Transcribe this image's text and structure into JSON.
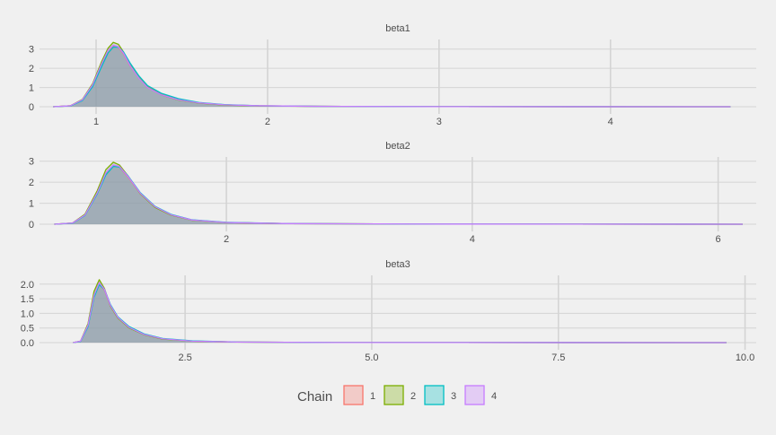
{
  "chart_data": {
    "type": "area",
    "chart_kind": "faceted density plot",
    "facet_layout": "3 rows, free x scales",
    "series_names": [
      "1",
      "2",
      "3",
      "4"
    ],
    "colors": {
      "1": "#f8766d",
      "2": "#7cae00",
      "3": "#00bfc4",
      "4": "#c77cff",
      "fill": "#8c9aa8"
    },
    "background": "#f0f0f0",
    "grid": true,
    "legend": {
      "title": "Chain",
      "position": "bottom",
      "labels": [
        "1",
        "2",
        "3",
        "4"
      ]
    },
    "panels": [
      {
        "title": "beta1",
        "xlim": [
          0.67,
          4.85
        ],
        "ylim": [
          0,
          3.5
        ],
        "xticks": [
          1,
          2,
          3,
          4
        ],
        "xtick_labels": [
          "1",
          "2",
          "3",
          "4"
        ],
        "yticks": [
          0,
          1,
          2,
          3
        ],
        "ytick_labels": [
          "0",
          "1",
          "2",
          "3"
        ],
        "x_range": [
          0.75,
          4.7
        ],
        "series": [
          {
            "name": "1",
            "x": [
              0.75,
              0.85,
              0.92,
              0.98,
              1.03,
              1.07,
              1.1,
              1.13,
              1.16,
              1.2,
              1.25,
              1.3,
              1.38,
              1.48,
              1.6,
              1.75,
              1.95,
              2.3,
              3.0,
              4.7
            ],
            "y": [
              0,
              0.05,
              0.35,
              1.1,
              2.1,
              2.8,
              3.15,
              3.1,
              2.75,
              2.1,
              1.5,
              1.05,
              0.65,
              0.38,
              0.2,
              0.1,
              0.05,
              0.02,
              0.005,
              0
            ]
          },
          {
            "name": "2",
            "x": [
              0.75,
              0.85,
              0.92,
              0.98,
              1.03,
              1.07,
              1.1,
              1.13,
              1.16,
              1.2,
              1.25,
              1.3,
              1.38,
              1.48,
              1.6,
              1.75,
              1.95,
              2.3,
              3.0,
              4.7
            ],
            "y": [
              0,
              0.05,
              0.38,
              1.2,
              2.3,
              3.05,
              3.35,
              3.25,
              2.85,
              2.15,
              1.5,
              1.02,
              0.62,
              0.35,
              0.19,
              0.09,
              0.04,
              0.02,
              0.005,
              0
            ]
          },
          {
            "name": "3",
            "x": [
              0.75,
              0.85,
              0.92,
              0.98,
              1.03,
              1.07,
              1.1,
              1.13,
              1.16,
              1.2,
              1.25,
              1.3,
              1.38,
              1.48,
              1.6,
              1.75,
              1.95,
              2.3,
              3.0,
              4.7
            ],
            "y": [
              0,
              0.04,
              0.32,
              1.05,
              2.05,
              2.8,
              3.1,
              3.1,
              2.85,
              2.25,
              1.6,
              1.1,
              0.7,
              0.42,
              0.22,
              0.11,
              0.05,
              0.02,
              0.005,
              0
            ]
          },
          {
            "name": "4",
            "x": [
              0.75,
              0.85,
              0.92,
              0.98,
              1.03,
              1.07,
              1.1,
              1.13,
              1.16,
              1.2,
              1.25,
              1.3,
              1.38,
              1.48,
              1.6,
              1.75,
              1.95,
              2.3,
              3.0,
              4.7
            ],
            "y": [
              0,
              0.05,
              0.36,
              1.15,
              2.2,
              2.95,
              3.2,
              3.12,
              2.78,
              2.12,
              1.48,
              1.0,
              0.62,
              0.36,
              0.2,
              0.1,
              0.05,
              0.02,
              0.005,
              0
            ]
          }
        ]
      },
      {
        "title": "beta2",
        "xlim": [
          0.48,
          6.31
        ],
        "ylim": [
          0,
          3.2
        ],
        "xticks": [
          2,
          4,
          6
        ],
        "xtick_labels": [
          "2",
          "4",
          "6"
        ],
        "yticks": [
          0,
          1,
          2,
          3
        ],
        "ytick_labels": [
          "0",
          "1",
          "2",
          "3"
        ],
        "x_range": [
          0.6,
          6.2
        ],
        "series": [
          {
            "name": "1",
            "x": [
              0.6,
              0.75,
              0.85,
              0.95,
              1.02,
              1.08,
              1.13,
              1.2,
              1.3,
              1.42,
              1.55,
              1.72,
              2.0,
              2.5,
              3.5,
              6.2
            ],
            "y": [
              0,
              0.06,
              0.45,
              1.5,
              2.4,
              2.8,
              2.72,
              2.25,
              1.45,
              0.82,
              0.45,
              0.2,
              0.08,
              0.03,
              0.01,
              0
            ]
          },
          {
            "name": "2",
            "x": [
              0.6,
              0.75,
              0.85,
              0.95,
              1.02,
              1.08,
              1.13,
              1.2,
              1.3,
              1.42,
              1.55,
              1.72,
              2.0,
              2.5,
              3.5,
              6.2
            ],
            "y": [
              0,
              0.06,
              0.48,
              1.6,
              2.6,
              2.95,
              2.82,
              2.3,
              1.45,
              0.8,
              0.43,
              0.19,
              0.08,
              0.03,
              0.01,
              0
            ]
          },
          {
            "name": "3",
            "x": [
              0.6,
              0.75,
              0.85,
              0.95,
              1.02,
              1.08,
              1.13,
              1.2,
              1.3,
              1.42,
              1.55,
              1.72,
              2.0,
              2.5,
              3.5,
              6.2
            ],
            "y": [
              0,
              0.05,
              0.42,
              1.45,
              2.35,
              2.75,
              2.72,
              2.3,
              1.5,
              0.85,
              0.47,
              0.21,
              0.09,
              0.03,
              0.01,
              0
            ]
          },
          {
            "name": "4",
            "x": [
              0.6,
              0.75,
              0.85,
              0.95,
              1.02,
              1.08,
              1.13,
              1.2,
              1.3,
              1.42,
              1.55,
              1.72,
              2.0,
              2.5,
              3.5,
              6.2
            ],
            "y": [
              0,
              0.06,
              0.44,
              1.5,
              2.45,
              2.82,
              2.75,
              2.27,
              1.47,
              0.83,
              0.45,
              0.2,
              0.08,
              0.03,
              0.01,
              0
            ]
          }
        ]
      },
      {
        "title": "beta3",
        "xlim": [
          0.55,
          10.15
        ],
        "ylim": [
          0,
          2.3
        ],
        "xticks": [
          2.5,
          5.0,
          7.5,
          10.0
        ],
        "xtick_labels": [
          "2.5",
          "5.0",
          "7.5",
          "10.0"
        ],
        "yticks": [
          0,
          0.5,
          1.0,
          1.5,
          2.0
        ],
        "ytick_labels": [
          "0.0",
          "0.5",
          "1.0",
          "1.5",
          "2.0"
        ],
        "x_range": [
          1.0,
          9.75
        ],
        "series": [
          {
            "name": "1",
            "x": [
              1.0,
              1.1,
              1.2,
              1.28,
              1.35,
              1.42,
              1.5,
              1.6,
              1.75,
              1.95,
              2.2,
              2.6,
              3.2,
              4.5,
              9.75
            ],
            "y": [
              0,
              0.05,
              0.6,
              1.6,
              2.0,
              1.8,
              1.25,
              0.85,
              0.52,
              0.28,
              0.13,
              0.05,
              0.02,
              0.005,
              0
            ]
          },
          {
            "name": "2",
            "x": [
              1.0,
              1.1,
              1.2,
              1.28,
              1.35,
              1.42,
              1.5,
              1.6,
              1.75,
              1.95,
              2.2,
              2.6,
              3.2,
              4.5,
              9.75
            ],
            "y": [
              0,
              0.05,
              0.65,
              1.75,
              2.15,
              1.85,
              1.25,
              0.84,
              0.5,
              0.27,
              0.12,
              0.05,
              0.02,
              0.005,
              0
            ]
          },
          {
            "name": "3",
            "x": [
              1.0,
              1.1,
              1.2,
              1.28,
              1.35,
              1.42,
              1.5,
              1.6,
              1.75,
              1.95,
              2.2,
              2.6,
              3.2,
              4.5,
              9.75
            ],
            "y": [
              0,
              0.04,
              0.55,
              1.55,
              1.98,
              1.82,
              1.3,
              0.88,
              0.55,
              0.3,
              0.14,
              0.06,
              0.02,
              0.005,
              0
            ]
          },
          {
            "name": "4",
            "x": [
              1.0,
              1.1,
              1.2,
              1.28,
              1.35,
              1.42,
              1.5,
              1.6,
              1.75,
              1.95,
              2.2,
              2.6,
              3.2,
              4.5,
              9.75
            ],
            "y": [
              0,
              0.05,
              0.6,
              1.62,
              2.05,
              1.82,
              1.27,
              0.86,
              0.52,
              0.28,
              0.13,
              0.05,
              0.02,
              0.005,
              0
            ]
          }
        ]
      }
    ]
  }
}
